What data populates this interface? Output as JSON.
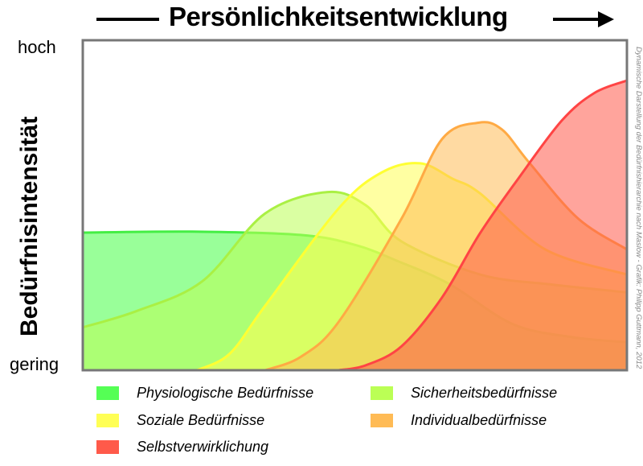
{
  "chart_data": {
    "type": "area",
    "title": "Persönlichkeitsentwicklung",
    "xlabel": "Persönlichkeitsentwicklung",
    "ylabel": "Bedürfnisintensität",
    "yticks": [
      "gering",
      "hoch"
    ],
    "xlim": [
      0,
      100
    ],
    "ylim": [
      0,
      100
    ],
    "grid": false,
    "legend": "bottom",
    "credit": "Dynamische Darstellung der Bedürfnishierarchie nach Maslow - Grafik: Philipp Guttmann, 2012",
    "series": [
      {
        "name": "Physiologische Bedürfnisse",
        "color": "#55ff55",
        "line": "#44ee44",
        "points": [
          [
            0,
            41.7
          ],
          [
            20,
            42
          ],
          [
            40,
            41
          ],
          [
            50,
            38
          ],
          [
            58,
            33
          ],
          [
            67.5,
            26
          ],
          [
            79,
            14
          ],
          [
            90,
            10
          ],
          [
            100,
            8.5
          ]
        ]
      },
      {
        "name": "Sicherheitsbedürfnisse",
        "color": "#bbff55",
        "line": "#aaf044",
        "points": [
          [
            0,
            13
          ],
          [
            10,
            18
          ],
          [
            22,
            27
          ],
          [
            33.5,
            47.5
          ],
          [
            45,
            54
          ],
          [
            52,
            50
          ],
          [
            58.6,
            39
          ],
          [
            73,
            29
          ],
          [
            86,
            26
          ],
          [
            100,
            23.6
          ]
        ]
      },
      {
        "name": "Soziale Bedürfnisse",
        "color": "#ffff55",
        "line": "#ffff33",
        "points": [
          [
            21,
            0
          ],
          [
            27,
            5
          ],
          [
            33.5,
            19.5
          ],
          [
            47,
            49
          ],
          [
            55,
            60
          ],
          [
            62,
            62.7
          ],
          [
            68,
            58
          ],
          [
            73,
            53.6
          ],
          [
            85,
            36.6
          ],
          [
            100,
            29
          ]
        ]
      },
      {
        "name": "Individualbedürfnisse",
        "color": "#ffbb55",
        "line": "#ffaa44",
        "points": [
          [
            33.5,
            0
          ],
          [
            40,
            4
          ],
          [
            47,
            14.6
          ],
          [
            58.6,
            46
          ],
          [
            66,
            70
          ],
          [
            72.7,
            75
          ],
          [
            77,
            73
          ],
          [
            82,
            63
          ],
          [
            91,
            46
          ],
          [
            100,
            36.6
          ]
        ]
      },
      {
        "name": "Selbstverwirklichung",
        "color": "#ff5a4a",
        "line": "#ff4444",
        "points": [
          [
            47,
            0
          ],
          [
            52,
            1.5
          ],
          [
            58.6,
            7.3
          ],
          [
            66,
            22
          ],
          [
            73,
            41.5
          ],
          [
            80,
            58
          ],
          [
            88,
            75.6
          ],
          [
            94,
            84
          ],
          [
            100,
            87.8
          ]
        ]
      }
    ]
  }
}
